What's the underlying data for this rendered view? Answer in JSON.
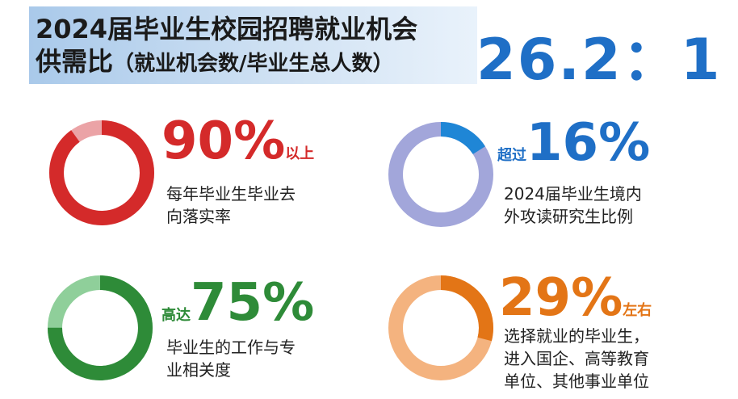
{
  "header": {
    "title_line1": "2024届毕业生校园招聘就业机会",
    "title_line2": "供需比",
    "title_sub": "（就业机会数/毕业生总人数）",
    "ratio": "26.2：1"
  },
  "stats": [
    {
      "id": "placement",
      "value": "90%",
      "suffix": "以上",
      "prefix": "",
      "desc_line1": "每年毕业生毕业去",
      "desc_line2": "向落实率",
      "fraction": 0.9,
      "color_main": "#d42a2a",
      "color_rest": "#eba3a6"
    },
    {
      "id": "further-study",
      "value": "16%",
      "prefix": "超过",
      "suffix": "",
      "desc_line1": "2024届毕业生境内",
      "desc_line2": "外攻读研究生比例",
      "fraction": 0.16,
      "color_main": "#1f86d6",
      "color_rest": "#a2a6da"
    },
    {
      "id": "relevance",
      "value": "75%",
      "prefix": "高达",
      "suffix": "",
      "desc_line1": "毕业生的工作与专",
      "desc_line2": "业相关度",
      "fraction": 0.75,
      "color_main": "#2e8b38",
      "color_rest": "#8fcf9a"
    },
    {
      "id": "state-employers",
      "value": "29%",
      "prefix": "",
      "suffix": "左右",
      "desc_line1": "选择就业的毕业生，",
      "desc_line2": "进入国企、高等教育",
      "desc_line3": "单位、其他事业单位",
      "fraction": 0.29,
      "color_main": "#e37516",
      "color_rest": "#f4b37f"
    }
  ]
}
